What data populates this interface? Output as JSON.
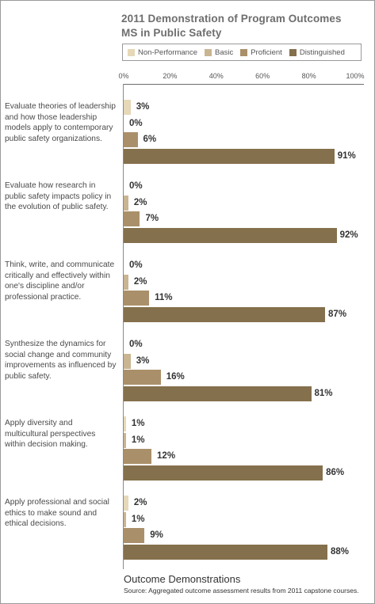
{
  "chart_data": {
    "type": "bar",
    "orientation": "horizontal",
    "title_lines": [
      "2011 Demonstration of Program Outcomes",
      "MS in Public Safety"
    ],
    "xlabel": "Outcome Demonstrations",
    "source": "Source: Aggregated outcome assessment results from 2011 capstone courses.",
    "xlim": [
      0,
      100
    ],
    "x_ticks": [
      "0%",
      "20%",
      "40%",
      "60%",
      "80%",
      "100%"
    ],
    "legend_position": "top",
    "categories": [
      "Evaluate theories of leadership and how those leadership models apply to contemporary public safety organizations.",
      "Evaluate how research in public safety impacts policy in the evolution of public safety.",
      "Think, write, and communicate critically and effectively within one's discipline and/or professional practice.",
      "Synthesize the dynamics for social change and community improvements as influenced by public safety.",
      "Apply diversity and multicultural perspectives within decision making.",
      "Apply professional and social ethics to make sound and ethical decisions."
    ],
    "series": [
      {
        "name": "Non-Performance",
        "color": "#e6d8b8",
        "values": [
          3,
          0,
          0,
          0,
          1,
          2
        ],
        "labels": [
          "3%",
          "0%",
          "0%",
          "0%",
          "1%",
          "2%"
        ]
      },
      {
        "name": "Basic",
        "color": "#c9b592",
        "values": [
          0,
          2,
          2,
          3,
          1,
          1
        ],
        "labels": [
          "0%",
          "2%",
          "2%",
          "3%",
          "1%",
          "1%"
        ]
      },
      {
        "name": "Proficient",
        "color": "#aa906a",
        "values": [
          6,
          7,
          11,
          16,
          12,
          9
        ],
        "labels": [
          "6%",
          "7%",
          "11%",
          "16%",
          "12%",
          "9%"
        ]
      },
      {
        "name": "Distinguished",
        "color": "#84704c",
        "values": [
          91,
          92,
          87,
          81,
          86,
          88
        ],
        "labels": [
          "91%",
          "92%",
          "87%",
          "81%",
          "86%",
          "88%"
        ]
      }
    ]
  }
}
